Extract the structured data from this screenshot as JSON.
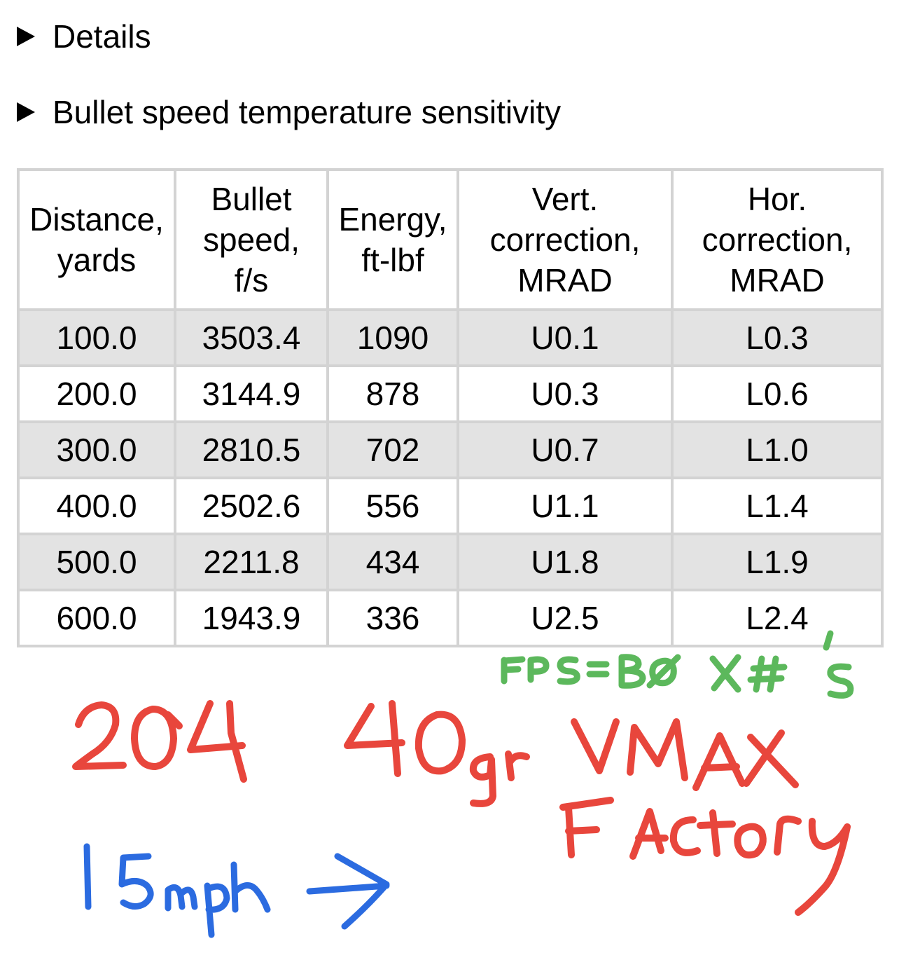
{
  "sections": [
    {
      "label": "Details",
      "expanded": false
    },
    {
      "label": "Bullet speed temperature sensitivity",
      "expanded": false
    }
  ],
  "table": {
    "headers": [
      "Distance,\nyards",
      "Bullet\nspeed,\nf/s",
      "Energy,\nft-lbf",
      "Vert.\ncorrection,\nMRAD",
      "Hor.\ncorrection,\nMRAD"
    ],
    "rows": [
      [
        "100.0",
        "3503.4",
        "1090",
        "U0.1",
        "L0.3"
      ],
      [
        "200.0",
        "3144.9",
        "878",
        "U0.3",
        "L0.6"
      ],
      [
        "300.0",
        "2810.5",
        "702",
        "U0.7",
        "L1.0"
      ],
      [
        "400.0",
        "2502.6",
        "556",
        "U1.1",
        "L1.4"
      ],
      [
        "500.0",
        "2211.8",
        "434",
        "U1.8",
        "L1.9"
      ],
      [
        "600.0",
        "1943.9",
        "336",
        "U2.5",
        "L2.4"
      ]
    ]
  },
  "annotations": {
    "fps_note": "FPS = BOX #'s",
    "cartridge": "204",
    "bullet": "40gr VMAX",
    "load": "Factory",
    "wind": "15mph →",
    "colors": {
      "red": "#e8463c",
      "green": "#5cb85c",
      "blue": "#2b6be0"
    }
  }
}
